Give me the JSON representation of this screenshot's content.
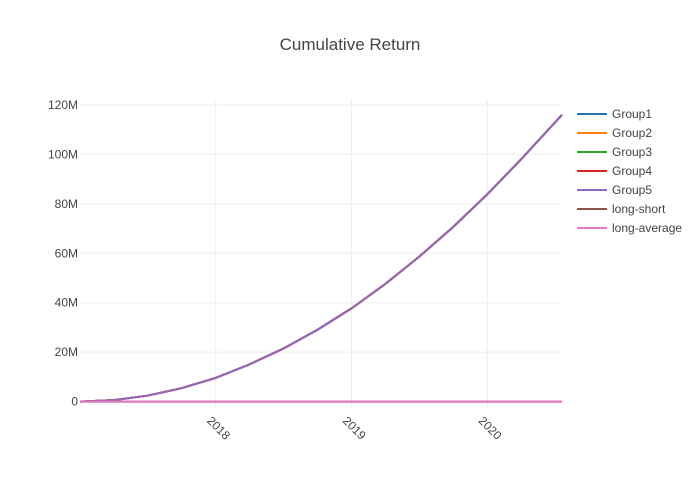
{
  "chart_data": {
    "type": "line",
    "title": "Cumulative Return",
    "xlabel": "",
    "ylabel": "",
    "x_range": [
      "2017-01-01",
      "2020-07-20"
    ],
    "y_range": [
      -3000000,
      122000000
    ],
    "x_ticks": [
      {
        "value": "2018-01-01",
        "label": "2018"
      },
      {
        "value": "2019-01-01",
        "label": "2019"
      },
      {
        "value": "2020-01-01",
        "label": "2020"
      }
    ],
    "y_ticks": [
      {
        "value": 0,
        "label": "0"
      },
      {
        "value": 20000000,
        "label": "20M"
      },
      {
        "value": 40000000,
        "label": "40M"
      },
      {
        "value": 60000000,
        "label": "60M"
      },
      {
        "value": 80000000,
        "label": "80M"
      },
      {
        "value": 100000000,
        "label": "100M"
      },
      {
        "value": 120000000,
        "label": "120M"
      }
    ],
    "grid": true,
    "legend_position": "right",
    "x": [
      "2017-01-01",
      "2017-04-01",
      "2017-07-01",
      "2017-10-01",
      "2018-01-01",
      "2018-04-01",
      "2018-07-01",
      "2018-10-01",
      "2019-01-01",
      "2019-04-01",
      "2019-07-01",
      "2019-10-01",
      "2020-01-01",
      "2020-04-01",
      "2020-07-20"
    ],
    "series": [
      {
        "name": "Group1",
        "color": "#1f77b4",
        "values": [
          0,
          590000,
          2400000,
          5400000,
          9600000,
          15000000,
          21400000,
          29000000,
          37700000,
          47500000,
          58500000,
          70600000,
          83800000,
          98000000,
          116000000
        ]
      },
      {
        "name": "Group2",
        "color": "#ff7f0e",
        "values": [
          0,
          590000,
          2400000,
          5400000,
          9600000,
          15000000,
          21400000,
          29000000,
          37700000,
          47500000,
          58500000,
          70600000,
          83800000,
          98000000,
          116000000
        ]
      },
      {
        "name": "Group3",
        "color": "#2ca02c",
        "values": [
          0,
          590000,
          2400000,
          5400000,
          9600000,
          15000000,
          21400000,
          29000000,
          37700000,
          47500000,
          58500000,
          70600000,
          83800000,
          98000000,
          116000000
        ]
      },
      {
        "name": "Group4",
        "color": "#d62728",
        "values": [
          0,
          590000,
          2400000,
          5400000,
          9600000,
          15000000,
          21400000,
          29000000,
          37700000,
          47500000,
          58500000,
          70600000,
          83800000,
          98000000,
          116000000
        ]
      },
      {
        "name": "Group5",
        "color": "#9467bd",
        "values": [
          0,
          590000,
          2400000,
          5400000,
          9600000,
          15000000,
          21400000,
          29000000,
          37700000,
          47500000,
          58500000,
          70600000,
          83800000,
          98000000,
          116000000
        ]
      },
      {
        "name": "long-short",
        "color": "#8c564b",
        "values": [
          0,
          0,
          0,
          0,
          0,
          0,
          0,
          0,
          0,
          0,
          0,
          0,
          0,
          0,
          0
        ]
      },
      {
        "name": "long-average",
        "color": "#e377c2",
        "values": [
          0,
          0,
          0,
          0,
          0,
          0,
          0,
          0,
          0,
          0,
          0,
          0,
          0,
          0,
          0
        ]
      }
    ]
  }
}
